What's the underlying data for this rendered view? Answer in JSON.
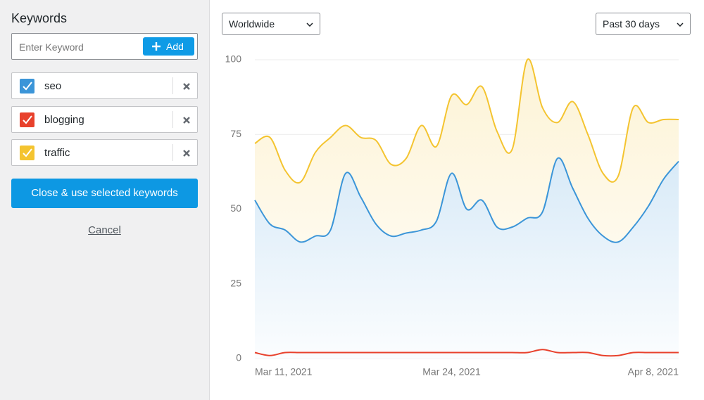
{
  "sidebar": {
    "title": "Keywords",
    "input_placeholder": "Enter Keyword",
    "add_button": "Add",
    "submit_button": "Close & use selected keywords",
    "cancel_link": "Cancel"
  },
  "filters": {
    "region": "Worldwide",
    "period": "Past 30 days"
  },
  "chart_data": {
    "type": "area",
    "categories": [
      "Mar 11, 2021",
      null,
      null,
      null,
      null,
      null,
      null,
      null,
      null,
      null,
      null,
      null,
      null,
      "Mar 24, 2021",
      null,
      null,
      null,
      null,
      null,
      null,
      null,
      null,
      null,
      null,
      null,
      null,
      null,
      null,
      "Apr 8, 2021"
    ],
    "series": [
      {
        "name": "seo",
        "color": "#3b95d8",
        "values": [
          53,
          45,
          43,
          39,
          41,
          43,
          62,
          54,
          45,
          41,
          42,
          43,
          46,
          62,
          50,
          53,
          44,
          44,
          47,
          49,
          67,
          57,
          47,
          41,
          39,
          44,
          51,
          60,
          66
        ]
      },
      {
        "name": "blogging",
        "color": "#e8412c",
        "values": [
          2,
          1,
          2,
          2,
          2,
          2,
          2,
          2,
          2,
          2,
          2,
          2,
          2,
          2,
          2,
          2,
          2,
          2,
          2,
          3,
          2,
          2,
          2,
          1,
          1,
          2,
          2,
          2,
          2
        ]
      },
      {
        "name": "traffic",
        "color": "#f4c430",
        "values": [
          72,
          74,
          63,
          59,
          69,
          74,
          78,
          74,
          73,
          65,
          67,
          78,
          71,
          88,
          85,
          91,
          76,
          70,
          100,
          84,
          79,
          86,
          75,
          62,
          61,
          84,
          79,
          80,
          80
        ]
      }
    ],
    "ylim": [
      0,
      100
    ],
    "yticks": [
      0,
      25,
      50,
      75,
      100
    ],
    "grid": true
  }
}
